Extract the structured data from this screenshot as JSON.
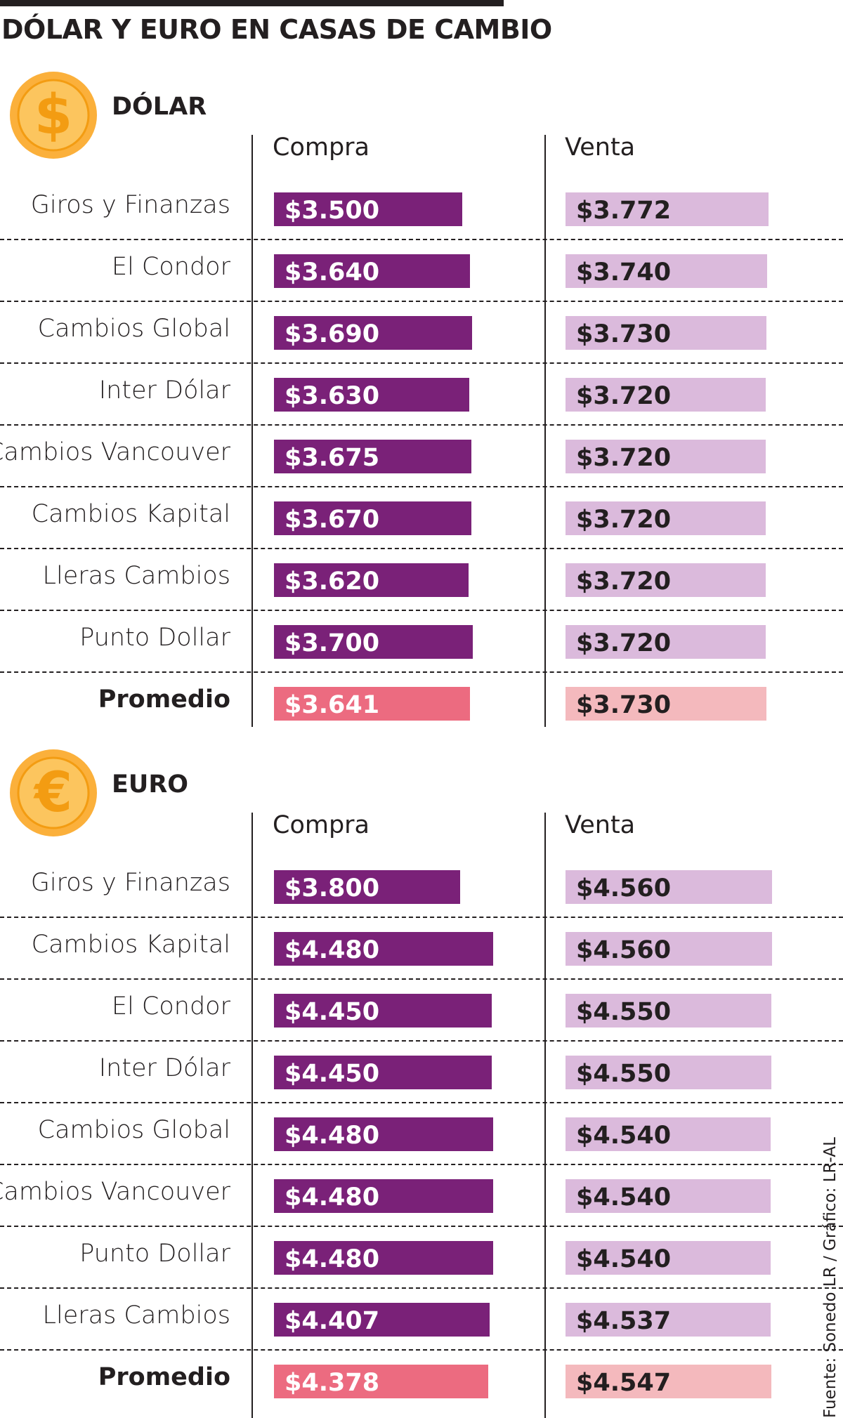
{
  "title": "DÓLAR Y EURO EN CASAS DE CAMBIO",
  "source": "Fuente: Sonedo LR / Gráfico: LR-AL",
  "colors": {
    "compra": "#7a2178",
    "venta": "#dbbadc",
    "promedio_compra": "#ec6b80",
    "promedio_venta": "#f4b9bd",
    "coin": "#fbb03b",
    "coin_inner": "#fcc55e"
  },
  "chart_data": [
    {
      "type": "bar",
      "title": "DÓLAR",
      "icon": "dollar-coin-icon",
      "currency_symbol": "$",
      "columns": [
        "Compra",
        "Venta"
      ],
      "categories": [
        "Giros y Finanzas",
        "El Condor",
        "Cambios Global",
        "Inter Dólar",
        "Cambios Vancouver",
        "Cambios Kapital",
        "Lleras Cambios",
        "Punto Dollar",
        "Promedio"
      ],
      "series": [
        {
          "name": "Compra",
          "values": [
            3500,
            3640,
            3690,
            3630,
            3675,
            3670,
            3620,
            3700,
            3641
          ],
          "labels": [
            "$3.500",
            "$3.640",
            "$3.690",
            "$3.630",
            "$3.675",
            "$3.670",
            "$3.620",
            "$3.700",
            "$3.641"
          ]
        },
        {
          "name": "Venta",
          "values": [
            3772,
            3740,
            3730,
            3720,
            3720,
            3720,
            3720,
            3720,
            3730
          ],
          "labels": [
            "$3.772",
            "$3.740",
            "$3.730",
            "$3.720",
            "$3.720",
            "$3.720",
            "$3.720",
            "$3.720",
            "$3.730"
          ]
        }
      ]
    },
    {
      "type": "bar",
      "title": "EURO",
      "icon": "euro-coin-icon",
      "currency_symbol": "€",
      "columns": [
        "Compra",
        "Venta"
      ],
      "categories": [
        "Giros y Finanzas",
        "Cambios Kapital",
        "El Condor",
        "Inter Dólar",
        "Cambios Global",
        "Cambios Vancouver",
        "Punto Dollar",
        "Lleras Cambios",
        "Promedio"
      ],
      "series": [
        {
          "name": "Compra",
          "values": [
            3800,
            4480,
            4450,
            4450,
            4480,
            4480,
            4480,
            4407,
            4378
          ],
          "labels": [
            "$3.800",
            "$4.480",
            "$4.450",
            "$4.450",
            "$4.480",
            "$4.480",
            "$4.480",
            "$4.407",
            "$4.378"
          ]
        },
        {
          "name": "Venta",
          "values": [
            4560,
            4560,
            4550,
            4550,
            4540,
            4540,
            4540,
            4537,
            4547
          ],
          "labels": [
            "$4.560",
            "$4.560",
            "$4.550",
            "$4.550",
            "$4.540",
            "$4.540",
            "$4.540",
            "$4.537",
            "$4.547"
          ]
        }
      ]
    }
  ]
}
